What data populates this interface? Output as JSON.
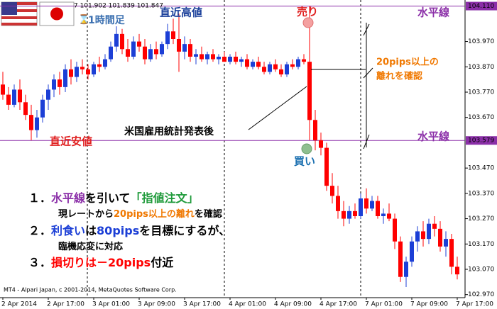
{
  "chart_data": {
    "type": "candlestick",
    "header": "7 101.902 101.839 101.847",
    "timeframe": "1時間足",
    "footer": "MT4 - Alpari Japan, c 2001-2014, MetaQuotes Software Corp.",
    "categories": [
      "2 Apr 2014",
      null,
      null,
      null,
      null,
      null,
      null,
      null,
      "2 Apr 17:00",
      null,
      null,
      null,
      null,
      null,
      null,
      null,
      "3 Apr 01:00",
      null,
      null,
      null,
      null,
      null,
      null,
      null,
      "3 Apr 09:00",
      null,
      null,
      null,
      null,
      null,
      null,
      null,
      "3 Apr 17:00",
      null,
      null,
      null,
      null,
      null,
      null,
      null,
      "4 Apr 01:00",
      null,
      null,
      null,
      null,
      null,
      null,
      null,
      "4 Apr 09:00",
      null,
      null,
      null,
      null,
      null,
      null,
      null,
      "4 Apr 17:00",
      null,
      null,
      null,
      null,
      null,
      null,
      null,
      "7 Apr 01:00",
      null,
      null,
      null,
      null,
      null,
      null,
      null,
      "7 Apr 09:00",
      null,
      null,
      null,
      null,
      null,
      null,
      null,
      "7 Apr 17:00"
    ],
    "up_color": "#1c3fd6",
    "down_color": "#ff0000",
    "open": [
      103.8,
      103.76,
      103.72,
      103.78,
      103.73,
      103.68,
      103.62,
      103.67,
      103.74,
      103.78,
      103.82,
      103.79,
      103.86,
      103.83,
      103.87,
      103.86,
      103.84,
      103.88,
      103.87,
      103.9,
      103.95,
      104.0,
      103.94,
      103.91,
      103.97,
      103.95,
      103.9,
      103.94,
      103.92,
      103.96,
      104.01,
      103.98,
      103.93,
      103.96,
      103.91,
      103.92,
      103.9,
      103.92,
      103.9,
      103.91,
      103.89,
      103.91,
      103.89,
      103.9,
      103.87,
      103.89,
      103.87,
      103.85,
      103.88,
      103.86,
      103.84,
      103.88,
      103.87,
      103.9,
      103.89,
      103.66,
      103.58,
      103.55,
      103.4,
      103.36,
      103.3,
      103.27,
      103.3,
      103.28,
      103.35,
      103.31,
      103.34,
      103.28,
      103.29,
      103.27,
      103.18,
      103.04,
      103.1,
      103.18,
      103.22,
      103.19,
      103.25,
      103.23,
      103.16,
      103.19,
      103.08
    ],
    "high": [
      103.85,
      103.79,
      103.8,
      103.82,
      103.76,
      103.72,
      103.7,
      103.76,
      103.8,
      103.84,
      103.85,
      103.88,
      103.9,
      103.89,
      103.9,
      103.88,
      103.89,
      103.91,
      103.92,
      103.97,
      104.03,
      104.02,
      103.98,
      103.99,
      104.0,
      103.98,
      103.96,
      103.97,
      103.97,
      104.04,
      104.06,
      104.08,
      103.99,
      103.98,
      103.94,
      103.95,
      103.93,
      103.94,
      103.92,
      103.93,
      103.92,
      103.93,
      103.91,
      103.92,
      103.9,
      103.91,
      103.89,
      103.89,
      103.9,
      103.88,
      103.89,
      103.9,
      103.91,
      103.92,
      104.11,
      103.7,
      103.61,
      103.57,
      103.45,
      103.4,
      103.34,
      103.32,
      103.33,
      103.37,
      103.39,
      103.36,
      103.36,
      103.31,
      103.33,
      103.29,
      103.2,
      103.12,
      103.2,
      103.24,
      103.26,
      103.27,
      103.28,
      103.26,
      103.22,
      103.21,
      103.12
    ],
    "low": [
      103.74,
      103.7,
      103.71,
      103.7,
      103.66,
      103.58,
      103.59,
      103.65,
      103.7,
      103.75,
      103.76,
      103.77,
      103.8,
      103.81,
      103.84,
      103.82,
      103.83,
      103.85,
      103.86,
      103.89,
      103.93,
      103.92,
      103.89,
      103.9,
      103.93,
      103.88,
      103.89,
      103.9,
      103.91,
      103.94,
      103.96,
      103.85,
      103.9,
      103.89,
      103.88,
      103.89,
      103.88,
      103.89,
      103.88,
      103.89,
      103.88,
      103.88,
      103.87,
      103.86,
      103.86,
      103.86,
      103.84,
      103.84,
      103.85,
      103.83,
      103.83,
      103.86,
      103.86,
      103.88,
      103.58,
      103.54,
      103.52,
      103.38,
      103.33,
      103.27,
      103.24,
      103.25,
      103.27,
      103.27,
      103.29,
      103.3,
      103.27,
      103.25,
      103.26,
      103.15,
      103.02,
      103.0,
      103.08,
      103.14,
      103.16,
      103.17,
      103.2,
      103.14,
      103.12,
      103.05,
      103.03
    ],
    "close": [
      103.76,
      103.72,
      103.78,
      103.73,
      103.68,
      103.62,
      103.67,
      103.74,
      103.78,
      103.82,
      103.79,
      103.86,
      103.83,
      103.87,
      103.86,
      103.84,
      103.88,
      103.87,
      103.9,
      103.95,
      104.0,
      103.94,
      103.91,
      103.97,
      103.95,
      103.9,
      103.94,
      103.92,
      103.96,
      104.01,
      103.98,
      103.93,
      103.96,
      103.91,
      103.92,
      103.9,
      103.92,
      103.9,
      103.91,
      103.89,
      103.91,
      103.89,
      103.9,
      103.87,
      103.89,
      103.87,
      103.85,
      103.88,
      103.86,
      103.84,
      103.88,
      103.87,
      103.9,
      103.89,
      103.66,
      103.58,
      103.55,
      103.4,
      103.36,
      103.3,
      103.27,
      103.3,
      103.28,
      103.35,
      103.31,
      103.34,
      103.28,
      103.29,
      103.27,
      103.18,
      103.04,
      103.1,
      103.18,
      103.22,
      103.19,
      103.25,
      103.23,
      103.16,
      103.19,
      103.08,
      103.05
    ],
    "ylim": [
      102.958,
      104.134
    ],
    "yticks": [
      {
        "value": 103.97,
        "label": "103.970"
      },
      {
        "value": 103.87,
        "label": "103.870"
      },
      {
        "value": 103.77,
        "label": "103.770"
      },
      {
        "value": 103.67,
        "label": "103.670"
      },
      {
        "value": 103.47,
        "label": "103.470"
      },
      {
        "value": 103.37,
        "label": "103.370"
      },
      {
        "value": 103.27,
        "label": "103.270"
      },
      {
        "value": 103.17,
        "label": "103.170"
      },
      {
        "value": 103.07,
        "label": "103.070"
      },
      {
        "value": 102.97,
        "label": "102.970"
      }
    ],
    "hlines": [
      {
        "value": 104.11,
        "label": "104.110"
      },
      {
        "value": 103.579,
        "label": "103.579"
      }
    ],
    "hline_color": "#8b2fa8",
    "annotations": {
      "recent_high": "直近高値",
      "recent_low": "直近安値",
      "sell": "売り",
      "buy": "買い",
      "hline_top": "水平線",
      "hline_bottom": "水平線",
      "news": "米国雇用統計発表後",
      "gap_line1": "20pips以上の",
      "gap_line2": "離れを確認"
    },
    "notes": [
      [
        {
          "text": "１．",
          "color": "#000"
        },
        {
          "text": "水平線",
          "color": "#8b2fa8"
        },
        {
          "text": "を引いて",
          "color": "#000"
        },
        {
          "text": "「指値注文」",
          "color": "#1e9a3a"
        }
      ],
      [
        {
          "text": "現レートから",
          "color": "#000"
        },
        {
          "text": "20pips以上の離れ",
          "color": "#f07800"
        },
        {
          "text": "を確認",
          "color": "#000"
        }
      ],
      [
        {
          "text": "２．",
          "color": "#000"
        },
        {
          "text": "利食い",
          "color": "#1c3fd6"
        },
        {
          "text": "は",
          "color": "#000"
        },
        {
          "text": "80pips",
          "color": "#1c3fd6"
        },
        {
          "text": "を目標にするが、",
          "color": "#000"
        }
      ],
      [
        {
          "text": "臨機応変に対応",
          "color": "#000"
        }
      ],
      [
        {
          "text": "３．",
          "color": "#000"
        },
        {
          "text": "損切りは－20pips",
          "color": "#ff0000"
        },
        {
          "text": "付近",
          "color": "#000"
        }
      ]
    ]
  }
}
